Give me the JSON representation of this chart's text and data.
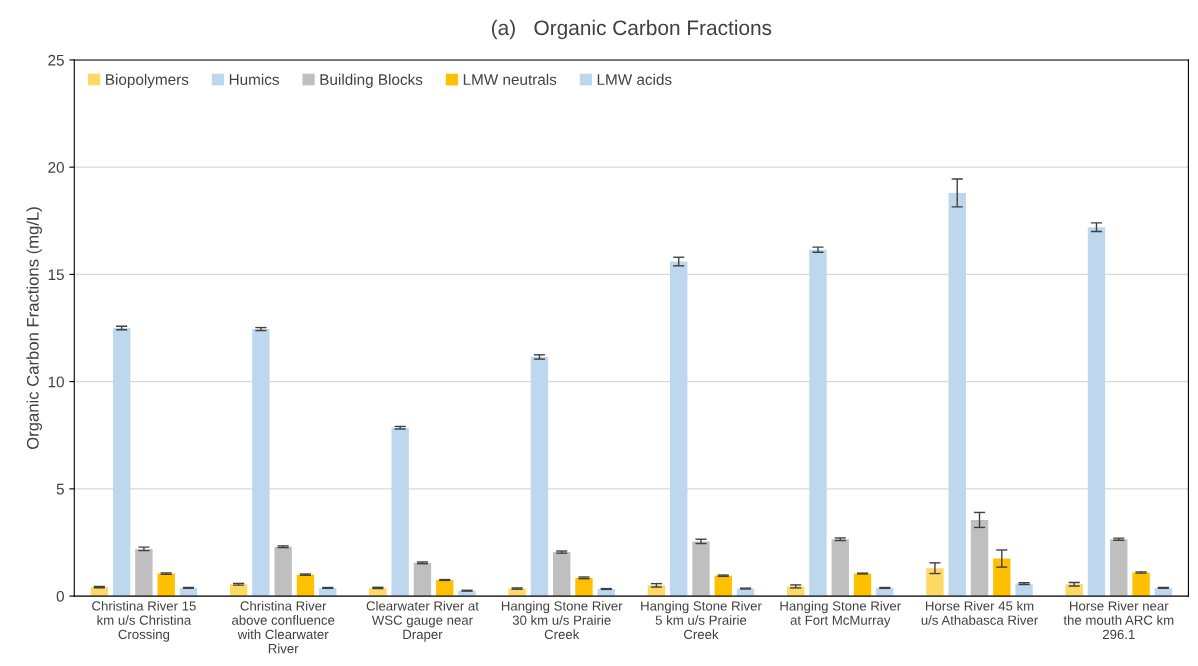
{
  "chart_data": {
    "type": "bar",
    "title": "(a)   Organic Carbon Fractions",
    "ylabel": "Organic Carbon Fractions (mg/L)",
    "categories": [
      "Christina River 15 km u/s Christina Crossing",
      "Christina River above confluence with Clearwater River",
      "Clearwater River at WSC gauge near Draper",
      "Hanging Stone River 30 km u/s Prairie Creek",
      "Hanging Stone River 5 km u/s Prairie Creek",
      "Hanging Stone River at Fort McMurray",
      "Horse River 45 km u/s Athabasca River",
      "Horse River near the mouth ARC km 296.1"
    ],
    "series": [
      {
        "name": "Biopolymers",
        "color": "#ffd966",
        "values": [
          0.42,
          0.55,
          0.38,
          0.35,
          0.5,
          0.45,
          1.3,
          0.55
        ],
        "errors": [
          0.03,
          0.04,
          0.03,
          0.03,
          0.08,
          0.07,
          0.25,
          0.08
        ]
      },
      {
        "name": "Humics",
        "color": "#bdd7ee",
        "values": [
          12.5,
          12.45,
          7.85,
          11.15,
          15.6,
          16.15,
          18.8,
          17.2
        ],
        "errors": [
          0.08,
          0.07,
          0.06,
          0.1,
          0.2,
          0.12,
          0.65,
          0.2
        ]
      },
      {
        "name": "Building Blocks",
        "color": "#bfbfbf",
        "values": [
          2.2,
          2.3,
          1.55,
          2.05,
          2.55,
          2.65,
          3.55,
          2.65
        ],
        "errors": [
          0.08,
          0.04,
          0.04,
          0.05,
          0.1,
          0.06,
          0.35,
          0.05
        ]
      },
      {
        "name": "LMW neutrals",
        "color": "#ffc000",
        "values": [
          1.05,
          1.0,
          0.75,
          0.85,
          0.95,
          1.05,
          1.75,
          1.1
        ],
        "errors": [
          0.03,
          0.03,
          0.02,
          0.04,
          0.03,
          0.02,
          0.4,
          0.03
        ]
      },
      {
        "name": "LMW acids",
        "color": "#bdd7ee",
        "values": [
          0.38,
          0.38,
          0.25,
          0.33,
          0.35,
          0.38,
          0.58,
          0.38
        ],
        "errors": [
          0.02,
          0.02,
          0.02,
          0.02,
          0.02,
          0.02,
          0.04,
          0.02
        ]
      }
    ],
    "ylim": [
      0,
      25
    ],
    "yticks": [
      0,
      5,
      10,
      15,
      20,
      25
    ],
    "grid": "y",
    "legend": "top left"
  }
}
